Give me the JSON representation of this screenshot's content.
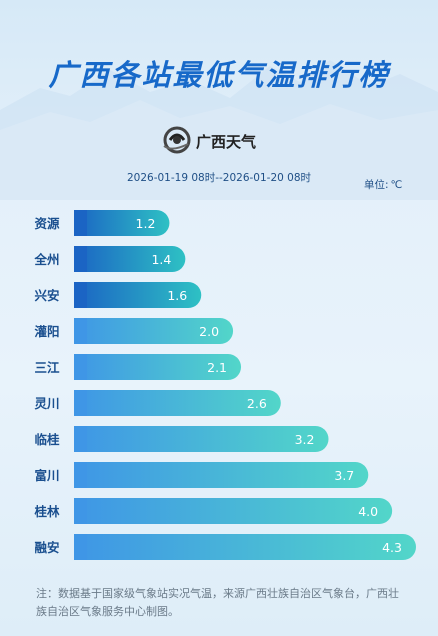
{
  "header": {
    "title": "广西各站最低气温排行榜",
    "logo_text": "广西天气",
    "date_range": "2026-01-19 08时--2026-01-20 08时",
    "unit_label": "单位:",
    "unit_value": "℃"
  },
  "chart_data": {
    "type": "bar",
    "orientation": "horizontal",
    "categories": [
      "资源",
      "全州",
      "兴安",
      "灌阳",
      "三江",
      "灵川",
      "临桂",
      "富川",
      "桂林",
      "融安"
    ],
    "values": [
      1.2,
      1.4,
      1.6,
      2.0,
      2.1,
      2.6,
      3.2,
      3.7,
      4.0,
      4.3
    ],
    "title": "广西各站最低气温排行榜",
    "xlabel": "",
    "ylabel": "",
    "unit": "℃",
    "xlim": [
      0,
      4.3
    ],
    "grid": false,
    "colors": {
      "top3_start": "#1b64c4",
      "top3_end": "#2ec1c4",
      "rest_start": "#3f96e6",
      "rest_end": "#52d6c9"
    }
  },
  "footnote": "注：数据基于国家级气象站实况气温，来源广西壮族自治区气象台，广西壮族自治区气象服务中心制图。"
}
